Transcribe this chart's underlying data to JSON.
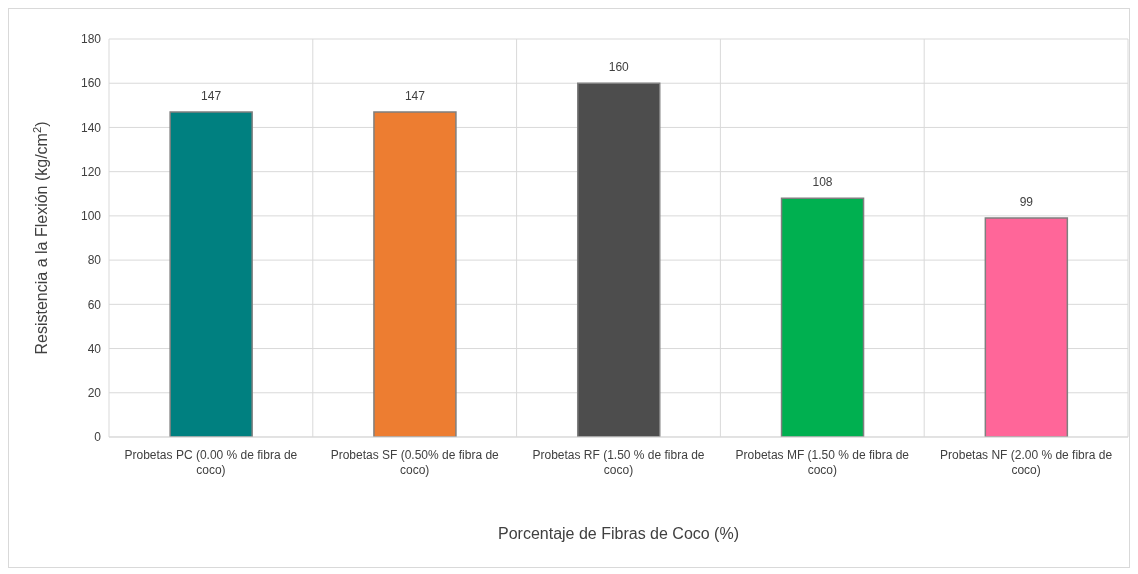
{
  "chart_data": {
    "type": "bar",
    "xlabel": "Porcentaje de Fibras de Coco (%)",
    "ylabel": "Resistencia  a la Flexión (kg/cm$^{2}$)",
    "categories": [
      "Probetas PC (0.00 % de fibra de coco)",
      "Probetas SF (0.50% de fibra de coco)",
      "Probetas RF (1.50 % de fibra de coco)",
      "Probetas MF (1.50 % de fibra de coco)",
      "Probetas NF (2.00 % de fibra de coco)"
    ],
    "values": [
      147,
      147,
      160,
      108,
      99
    ],
    "colors": [
      "#008080",
      "#ed7d31",
      "#4d4d4d",
      "#00b050",
      "#ff6699"
    ],
    "ylim": [
      0,
      180
    ],
    "yticks": [
      0,
      20,
      40,
      60,
      80,
      100,
      120,
      140,
      160,
      180
    ],
    "grid": true,
    "data_labels": true
  }
}
